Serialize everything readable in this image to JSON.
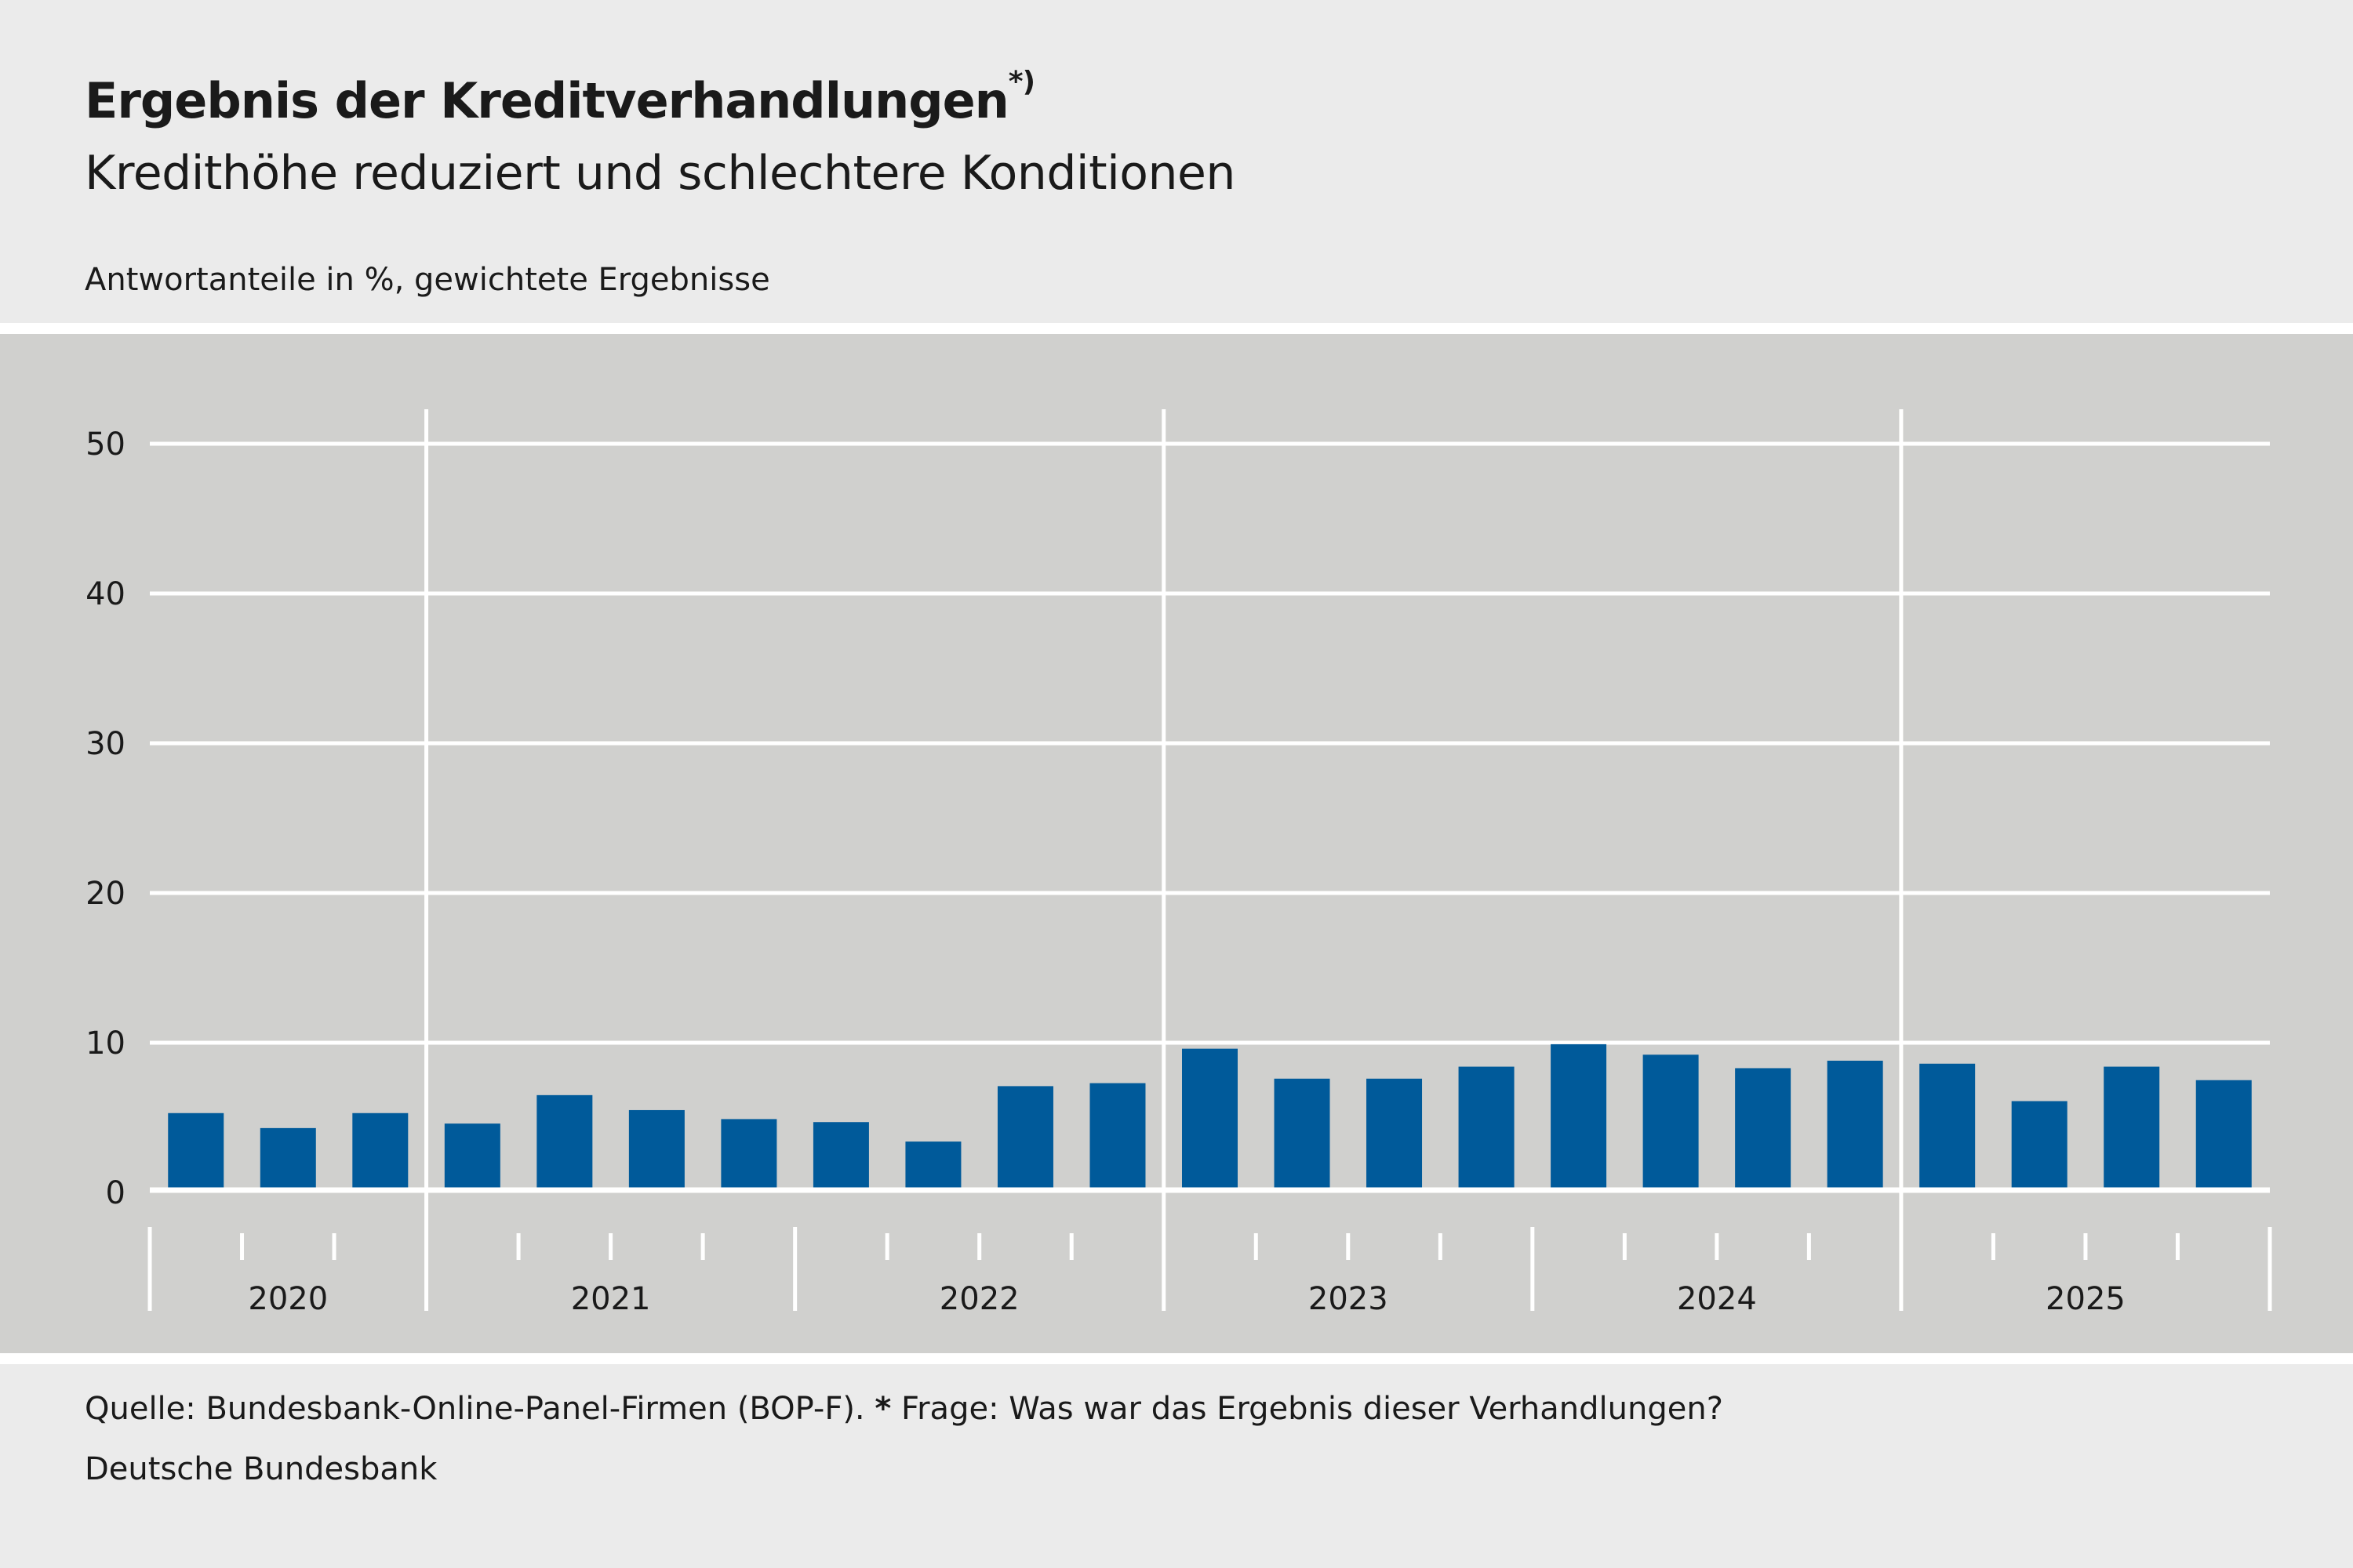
{
  "header": {
    "title": "Ergebnis der Kreditverhandlungen",
    "title_marker": "*)",
    "subtitle": "Kredithöhe reduziert und schlechtere Konditionen",
    "unit_note": "Antwortanteile in %, gewichtete Ergebnisse"
  },
  "footer": {
    "source_prefix": "Quelle: Bundesbank-Online-Panel-Firmen (BOP-F).",
    "note_marker": "*",
    "note_text": "Frage: Was war das Ergebnis dieser Verhandlungen?",
    "publisher": "Deutsche Bundesbank"
  },
  "chart_data": {
    "type": "bar",
    "title": "Ergebnis der Kreditverhandlungen",
    "xlabel": "",
    "ylabel": "Antwortanteile in %",
    "ylim": [
      0,
      50
    ],
    "yticks": [
      0,
      10,
      20,
      30,
      40,
      50
    ],
    "grid": true,
    "bar_color": "#005a9a",
    "years": [
      {
        "label": "2020",
        "quarters": 3
      },
      {
        "label": "2021",
        "quarters": 4
      },
      {
        "label": "2022",
        "quarters": 4
      },
      {
        "label": "2023",
        "quarters": 4
      },
      {
        "label": "2024",
        "quarters": 4
      },
      {
        "label": "2025",
        "quarters": 4
      }
    ],
    "categories": [
      "2020 Q2",
      "2020 Q3",
      "2020 Q4",
      "2021 Q1",
      "2021 Q2",
      "2021 Q3",
      "2021 Q4",
      "2022 Q1",
      "2022 Q2",
      "2022 Q3",
      "2022 Q4",
      "2023 Q1",
      "2023 Q2",
      "2023 Q3",
      "2023 Q4",
      "2024 Q1",
      "2024 Q2",
      "2024 Q3",
      "2024 Q4",
      "2025 Q1",
      "2025 Q2",
      "2025 Q3",
      "2025 Q4"
    ],
    "values": [
      5.3,
      4.3,
      5.3,
      4.6,
      6.5,
      5.5,
      4.9,
      4.7,
      3.4,
      7.1,
      7.3,
      9.6,
      7.6,
      7.6,
      8.4,
      9.9,
      9.2,
      8.3,
      8.8,
      8.6,
      6.1,
      8.4,
      7.5
    ]
  }
}
